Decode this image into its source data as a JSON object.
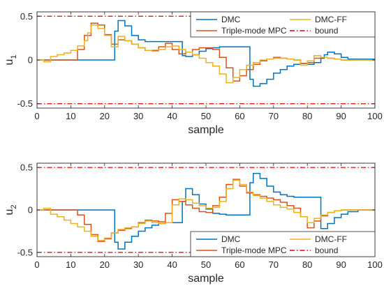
{
  "colors": {
    "DMC": "#0072BD",
    "Triple-mode MPC": "#D95319",
    "DMC-FF": "#EDB120",
    "bound": "#E00000",
    "axis": "#262626",
    "grid": "#D9D9D9"
  },
  "chart_data": [
    {
      "type": "line",
      "ylabel": "u",
      "ylabel_sub": "1",
      "xlabel": "sample",
      "xlim": [
        0,
        100
      ],
      "ylim": [
        -0.55,
        0.55
      ],
      "xticks": [
        0,
        10,
        20,
        30,
        40,
        50,
        60,
        70,
        80,
        90,
        100
      ],
      "yticks": [
        -0.5,
        0,
        0.5
      ],
      "ytick_labels": [
        "-0.5",
        "0",
        "0.5"
      ],
      "grid": false,
      "legend_position": "top-right",
      "legend": [
        "DMC",
        "DMC-FF",
        "Triple-mode MPC",
        "bound"
      ],
      "series": [
        {
          "name": "DMC",
          "step": true,
          "x": [
            0,
            22,
            23,
            24,
            26,
            28,
            30,
            32,
            34,
            36,
            38,
            40,
            42,
            43,
            44,
            46,
            48,
            50,
            52,
            54,
            56,
            58,
            60,
            62,
            63,
            64,
            66,
            68,
            70,
            72,
            74,
            76,
            78,
            80,
            82,
            84,
            85,
            86,
            88,
            90,
            92,
            100
          ],
          "y": [
            0,
            0,
            0.33,
            0.45,
            0.39,
            0.28,
            0.23,
            0.21,
            0.21,
            0.21,
            0.21,
            0.21,
            0.21,
            0.05,
            0.04,
            0.06,
            0.1,
            0.13,
            0.14,
            0.15,
            0.15,
            0.15,
            0.15,
            0.15,
            -0.22,
            -0.3,
            -0.27,
            -0.22,
            -0.15,
            -0.11,
            -0.07,
            -0.05,
            -0.04,
            -0.05,
            -0.03,
            0.02,
            0.06,
            0.09,
            0.07,
            0.03,
            0.01,
            0
          ]
        },
        {
          "name": "DMC-FF",
          "step": true,
          "x": [
            0,
            2,
            4,
            6,
            8,
            10,
            12,
            14,
            15,
            16,
            18,
            20,
            22,
            24,
            26,
            28,
            30,
            32,
            34,
            36,
            38,
            40,
            42,
            44,
            46,
            48,
            50,
            52,
            54,
            56,
            58,
            60,
            62,
            64,
            66,
            68,
            70,
            72,
            74,
            76,
            78,
            80,
            82,
            84,
            86,
            88,
            90,
            92,
            95,
            100
          ],
          "y": [
            0,
            -0.02,
            0.04,
            0.06,
            0.08,
            0.11,
            0.16,
            0.22,
            0.31,
            0.4,
            0.36,
            0.28,
            0.15,
            0.27,
            0.22,
            0.18,
            0.14,
            0.11,
            0.1,
            0.12,
            0.15,
            0.16,
            0.12,
            0.09,
            0.06,
            0.02,
            -0.03,
            -0.07,
            -0.16,
            -0.26,
            -0.2,
            -0.11,
            -0.06,
            -0.03,
            0,
            0.01,
            0.02,
            0.02,
            0.01,
            0,
            -0.06,
            -0.01,
            0.05,
            0.03,
            0.02,
            0.01,
            0,
            0,
            0,
            0
          ]
        },
        {
          "name": "Triple-mode MPC",
          "step": true,
          "x": [
            0,
            10,
            12,
            14,
            16,
            18,
            20,
            22,
            24,
            26,
            28,
            30,
            32,
            34,
            36,
            38,
            40,
            42,
            44,
            46,
            48,
            50,
            52,
            54,
            56,
            58,
            60,
            62,
            64,
            66,
            68,
            70,
            72,
            74,
            76,
            78,
            80,
            82,
            84,
            86,
            88,
            90,
            92,
            100
          ],
          "y": [
            0,
            0,
            0.12,
            0.28,
            0.42,
            0.4,
            0.29,
            0.18,
            0.23,
            0.22,
            0.18,
            0.14,
            0.11,
            0.11,
            0.15,
            0.19,
            0.12,
            0.07,
            0.09,
            0.12,
            0.14,
            0.14,
            0.12,
            0.03,
            -0.09,
            -0.24,
            -0.18,
            -0.11,
            -0.05,
            -0.01,
            0.01,
            0.03,
            0.02,
            0.01,
            0,
            -0.04,
            -0.03,
            0.02,
            0.03,
            0.02,
            0.01,
            0,
            0,
            0
          ]
        },
        {
          "name": "bound",
          "dashed": true,
          "x": [
            0,
            100
          ],
          "y": [
            0.5,
            0.5
          ]
        },
        {
          "name": "bound",
          "dashed": true,
          "x": [
            0,
            100
          ],
          "y": [
            -0.5,
            -0.5
          ]
        }
      ]
    },
    {
      "type": "line",
      "ylabel": "u",
      "ylabel_sub": "2",
      "xlabel": "sample",
      "xlim": [
        0,
        100
      ],
      "ylim": [
        -0.55,
        0.55
      ],
      "xticks": [
        0,
        10,
        20,
        30,
        40,
        50,
        60,
        70,
        80,
        90,
        100
      ],
      "yticks": [
        -0.5,
        0,
        0.5
      ],
      "ytick_labels": [
        "-0.5",
        "0",
        "0.5"
      ],
      "grid": false,
      "legend_position": "bottom-right",
      "legend": [
        "DMC",
        "DMC-FF",
        "Triple-mode MPC",
        "bound"
      ],
      "series": [
        {
          "name": "DMC",
          "step": true,
          "x": [
            0,
            22,
            23,
            24,
            26,
            28,
            30,
            32,
            34,
            36,
            38,
            40,
            42,
            43,
            44,
            46,
            48,
            50,
            52,
            54,
            56,
            58,
            60,
            62,
            63,
            64,
            66,
            68,
            70,
            72,
            74,
            76,
            78,
            80,
            82,
            84,
            86,
            88,
            90,
            92,
            95,
            100
          ],
          "y": [
            0,
            0,
            -0.38,
            -0.46,
            -0.38,
            -0.31,
            -0.25,
            -0.21,
            -0.18,
            -0.16,
            -0.15,
            -0.15,
            -0.15,
            0.1,
            0.25,
            0.18,
            0.07,
            0.01,
            -0.04,
            -0.05,
            -0.06,
            -0.06,
            -0.06,
            -0.06,
            0.32,
            0.43,
            0.37,
            0.28,
            0.21,
            0.18,
            0.16,
            0.15,
            0.15,
            0.15,
            0.15,
            -0.22,
            -0.16,
            -0.09,
            -0.05,
            -0.02,
            0,
            0
          ]
        },
        {
          "name": "DMC-FF",
          "step": true,
          "x": [
            0,
            2,
            4,
            6,
            8,
            10,
            12,
            14,
            16,
            18,
            20,
            22,
            24,
            26,
            28,
            30,
            32,
            34,
            36,
            38,
            40,
            42,
            44,
            46,
            48,
            50,
            52,
            54,
            56,
            58,
            60,
            62,
            64,
            66,
            68,
            70,
            72,
            74,
            76,
            78,
            80,
            82,
            84,
            86,
            88,
            90,
            92,
            95,
            100
          ],
          "y": [
            0,
            0.02,
            -0.05,
            -0.08,
            -0.12,
            -0.16,
            -0.2,
            -0.25,
            -0.31,
            -0.36,
            -0.33,
            -0.27,
            -0.23,
            -0.21,
            -0.2,
            -0.16,
            -0.13,
            -0.15,
            -0.16,
            -0.15,
            0.06,
            0.13,
            0.12,
            0.08,
            0.05,
            0.02,
            0.03,
            0.1,
            0.25,
            0.35,
            0.3,
            0.21,
            0.17,
            0.14,
            0.1,
            0.06,
            0.03,
            0.01,
            -0.03,
            -0.08,
            -0.15,
            -0.1,
            -0.06,
            -0.03,
            -0.01,
            0,
            0,
            0,
            0
          ]
        },
        {
          "name": "Triple-mode MPC",
          "step": true,
          "x": [
            0,
            10,
            12,
            14,
            16,
            18,
            20,
            22,
            24,
            26,
            28,
            30,
            32,
            34,
            36,
            38,
            40,
            42,
            44,
            46,
            48,
            50,
            52,
            54,
            56,
            58,
            60,
            62,
            64,
            66,
            68,
            70,
            72,
            74,
            76,
            78,
            80,
            82,
            84,
            86,
            88,
            90,
            92,
            100
          ],
          "y": [
            0,
            0,
            -0.06,
            -0.17,
            -0.29,
            -0.37,
            -0.34,
            -0.27,
            -0.24,
            -0.22,
            -0.2,
            -0.15,
            -0.12,
            -0.13,
            -0.14,
            -0.04,
            0.12,
            0.1,
            0.06,
            0.02,
            -0.02,
            -0.03,
            0.05,
            0.15,
            0.3,
            0.36,
            0.28,
            0.2,
            0.18,
            0.16,
            0.14,
            0.12,
            0.09,
            0.05,
            0.02,
            -0.08,
            -0.21,
            -0.13,
            -0.07,
            -0.03,
            -0.01,
            0,
            0,
            0
          ]
        },
        {
          "name": "bound",
          "dashed": true,
          "x": [
            0,
            100
          ],
          "y": [
            0.5,
            0.5
          ]
        },
        {
          "name": "bound",
          "dashed": true,
          "x": [
            0,
            100
          ],
          "y": [
            -0.5,
            -0.5
          ]
        }
      ]
    }
  ]
}
